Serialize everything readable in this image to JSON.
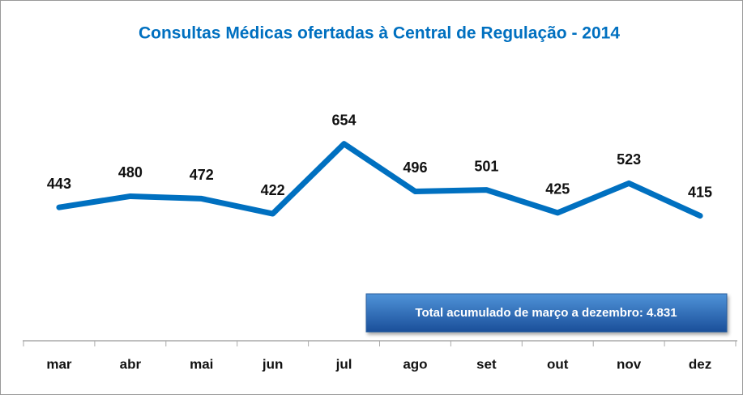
{
  "chart_data": {
    "type": "line",
    "title": "Consultas Médicas ofertadas à Central de Regulação - 2014",
    "categories": [
      "mar",
      "abr",
      "mai",
      "jun",
      "jul",
      "ago",
      "set",
      "out",
      "nov",
      "dez"
    ],
    "series": [
      {
        "name": "Consultas",
        "color": "#0070c0",
        "values": [
          443,
          480,
          472,
          422,
          654,
          496,
          501,
          425,
          523,
          415
        ]
      }
    ],
    "ylim": [
      0,
      1000
    ],
    "annotation": "Total acumulado  de março a dezembro: 4.831"
  }
}
